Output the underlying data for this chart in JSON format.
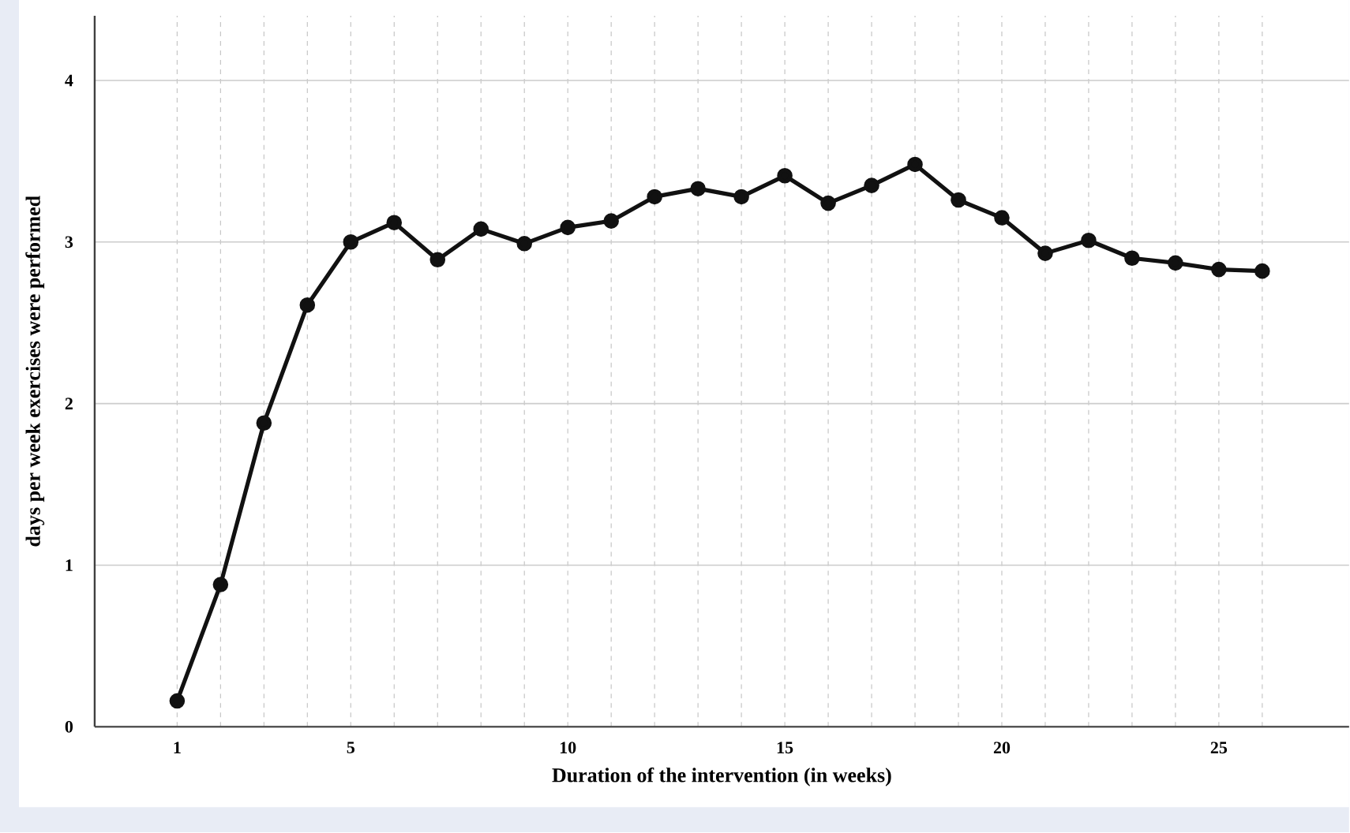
{
  "chart_data": {
    "type": "line",
    "xlabel": "Duration of the intervention (in weeks)",
    "ylabel": "days per week exercises were performed",
    "x": [
      1,
      2,
      3,
      4,
      5,
      6,
      7,
      8,
      9,
      10,
      11,
      12,
      13,
      14,
      15,
      16,
      17,
      18,
      19,
      20,
      21,
      22,
      23,
      24,
      25,
      26
    ],
    "values": [
      0.16,
      0.88,
      1.88,
      2.61,
      3.0,
      3.12,
      2.89,
      3.08,
      2.99,
      3.09,
      3.13,
      3.28,
      3.33,
      3.28,
      3.41,
      3.24,
      3.35,
      3.48,
      3.26,
      3.15,
      2.93,
      3.01,
      2.9,
      2.87,
      2.83,
      2.82
    ],
    "color": "#111111",
    "xlim": [
      -0.9,
      28
    ],
    "ylim": [
      0,
      4.4
    ],
    "xticks": [
      1,
      {
        "value": 2,
        "label": null
      },
      {
        "value": 3,
        "label": null
      },
      {
        "value": 4,
        "label": null
      },
      5,
      {
        "value": 6,
        "label": null
      },
      {
        "value": 7,
        "label": null
      },
      {
        "value": 8,
        "label": null
      },
      {
        "value": 9,
        "label": null
      },
      10,
      {
        "value": 11,
        "label": null
      },
      {
        "value": 12,
        "label": null
      },
      {
        "value": 13,
        "label": null
      },
      {
        "value": 14,
        "label": null
      },
      15,
      {
        "value": 16,
        "label": null
      },
      {
        "value": 17,
        "label": null
      },
      {
        "value": 18,
        "label": null
      },
      {
        "value": 19,
        "label": null
      },
      20,
      {
        "value": 21,
        "label": null
      },
      {
        "value": 22,
        "label": null
      },
      {
        "value": 23,
        "label": null
      },
      {
        "value": 24,
        "label": null
      },
      25,
      {
        "value": 26,
        "label": null
      }
    ],
    "yticks": [
      0,
      1,
      2,
      3,
      4
    ],
    "grid": true,
    "marker": "circle",
    "line_style": "solid"
  }
}
